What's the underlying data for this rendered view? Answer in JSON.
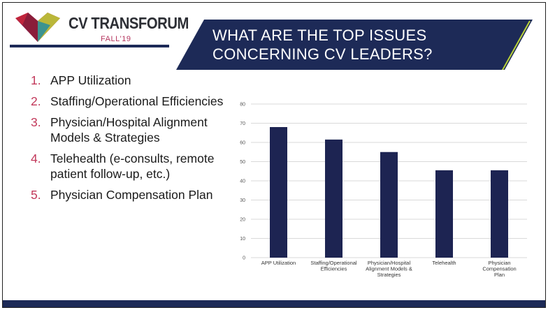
{
  "header": {
    "logo_text": "CV TRANSFORUM",
    "logo_subtext": "FALL'19",
    "title_lines": [
      "WHAT ARE THE TOP ISSUES",
      "CONCERNING CV LEADERS?"
    ]
  },
  "issues": [
    {
      "num": "1.",
      "label": "APP Utilization"
    },
    {
      "num": "2.",
      "label": "Staffing/Operational Efficiencies"
    },
    {
      "num": "3.",
      "label": "Physician/Hospital Alignment Models & Strategies"
    },
    {
      "num": "4.",
      "label": "Telehealth (e-consults, remote patient follow-up, etc.)"
    },
    {
      "num": "5.",
      "label": "Physician Compensation Plan"
    }
  ],
  "colors": {
    "navy": "#1d2a57",
    "bar": "#1d2452",
    "accent": "#c2385a",
    "logo_red": "#c0243c",
    "logo_green": "#b9d138"
  },
  "chart_data": {
    "type": "bar",
    "categories": [
      [
        "APP Utilization"
      ],
      [
        "Staffing/Operational",
        "Efficiencies"
      ],
      [
        "Physician/Hospital",
        "Alignment Models &",
        "Strategies"
      ],
      [
        "Telehealth"
      ],
      [
        "Physician",
        "Compensation",
        "Plan"
      ]
    ],
    "values": [
      68,
      61.5,
      55,
      45.5,
      45.5
    ],
    "ylim": [
      0,
      80
    ],
    "yticks": [
      0,
      10,
      20,
      30,
      40,
      50,
      60,
      70,
      80
    ],
    "grid": true
  }
}
